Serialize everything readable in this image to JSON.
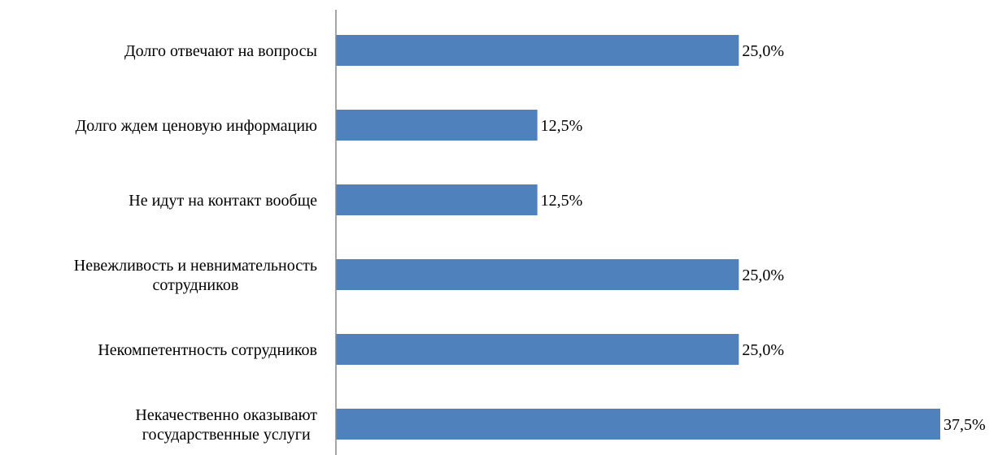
{
  "chart_data": {
    "type": "bar",
    "orientation": "horizontal",
    "title": "",
    "xlabel": "",
    "ylabel": "",
    "categories": [
      [
        "Долго отвечают на вопросы"
      ],
      [
        "Долго ждем ценовую информацию"
      ],
      [
        "Не идут на контакт вообще"
      ],
      [
        "Невежливость и невнимательность",
        "сотрудников"
      ],
      [
        "Некомпетентность сотрудников"
      ],
      [
        "Некачественно оказывают",
        "государственные услуги"
      ]
    ],
    "values": [
      25.0,
      12.5,
      12.5,
      25.0,
      25.0,
      37.5
    ],
    "data_labels": [
      "25,0%",
      "12,5%",
      "12,5%",
      "25,0%",
      "25,0%",
      "37,5%"
    ],
    "xlim": [
      0,
      37.5
    ],
    "bar_color": "#4f81bd",
    "axis_color": "#898989",
    "grid": false,
    "legend": "none"
  }
}
